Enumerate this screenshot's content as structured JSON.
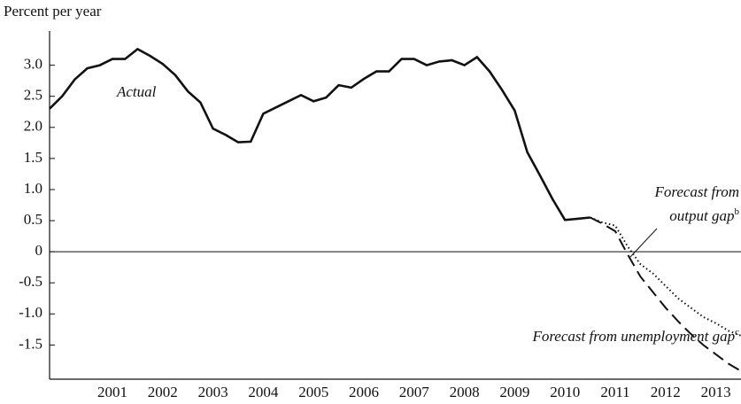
{
  "chart_data": {
    "type": "line",
    "ylabel": "Percent per year",
    "xlim": [
      1999.75,
      2013.5
    ],
    "xticks": [
      2001,
      2002,
      2003,
      2004,
      2005,
      2006,
      2007,
      2008,
      2009,
      2010,
      2011,
      2012,
      2013
    ],
    "ylim": [
      -2.05,
      3.55
    ],
    "yticks": [
      -1.5,
      {
        "value": -1,
        "label": "-1.0"
      },
      -0.5,
      0,
      0.5,
      {
        "value": 1,
        "label": "1.0"
      },
      1.5,
      {
        "value": 2,
        "label": "2.0"
      },
      2.5,
      {
        "value": 3,
        "label": "3.0"
      }
    ],
    "zero_line": true,
    "series": [
      {
        "name": "Actual",
        "color": "#111111",
        "style": "solid",
        "x": [
          1999.75,
          2000,
          2000.25,
          2000.5,
          2000.75,
          2001,
          2001.25,
          2001.5,
          2001.75,
          2002,
          2002.25,
          2002.5,
          2002.75,
          2003,
          2003.25,
          2003.5,
          2003.75,
          2004,
          2004.25,
          2004.5,
          2004.75,
          2005,
          2005.25,
          2005.5,
          2005.75,
          2006,
          2006.25,
          2006.5,
          2006.75,
          2007,
          2007.25,
          2007.5,
          2007.75,
          2008,
          2008.25,
          2008.5,
          2008.75,
          2009,
          2009.25,
          2009.5,
          2009.75,
          2010,
          2010.25,
          2010.5
        ],
        "values": [
          2.3,
          2.5,
          2.77,
          2.95,
          3.0,
          3.1,
          3.1,
          3.26,
          3.15,
          3.02,
          2.84,
          2.58,
          2.4,
          1.98,
          1.88,
          1.76,
          1.77,
          2.22,
          2.32,
          2.42,
          2.52,
          2.42,
          2.48,
          2.68,
          2.64,
          2.78,
          2.9,
          2.9,
          3.1,
          3.1,
          3.0,
          3.06,
          3.08,
          3.0,
          3.13,
          2.9,
          2.6,
          2.27,
          1.6,
          1.23,
          0.85,
          0.51,
          0.53,
          0.55
        ]
      },
      {
        "name": "Forecast from output gap",
        "color": "#111111",
        "style": "dotted",
        "x": [
          2010.5,
          2010.75,
          2011,
          2011.25,
          2011.5,
          2011.75,
          2012,
          2012.25,
          2012.5,
          2012.75,
          2013,
          2013.25,
          2013.5
        ],
        "values": [
          0.55,
          0.47,
          0.42,
          0.08,
          -0.2,
          -0.35,
          -0.55,
          -0.75,
          -0.9,
          -1.05,
          -1.15,
          -1.27,
          -1.35
        ]
      },
      {
        "name": "Forecast from unemployment gap",
        "color": "#111111",
        "style": "dashed",
        "x": [
          2010.5,
          2010.75,
          2011,
          2011.25,
          2011.5,
          2011.75,
          2012,
          2012.25,
          2012.5,
          2012.75,
          2013,
          2013.25,
          2013.5
        ],
        "values": [
          0.55,
          0.45,
          0.33,
          -0.05,
          -0.4,
          -0.65,
          -0.9,
          -1.12,
          -1.32,
          -1.5,
          -1.65,
          -1.8,
          -1.92
        ]
      }
    ],
    "annotations": [
      {
        "text": "Actual"
      },
      {
        "text": "Forecast from"
      },
      {
        "text": "output gap",
        "sup": "b"
      },
      {
        "text": "Forecast from unemployment gap",
        "sup": "c"
      }
    ]
  }
}
